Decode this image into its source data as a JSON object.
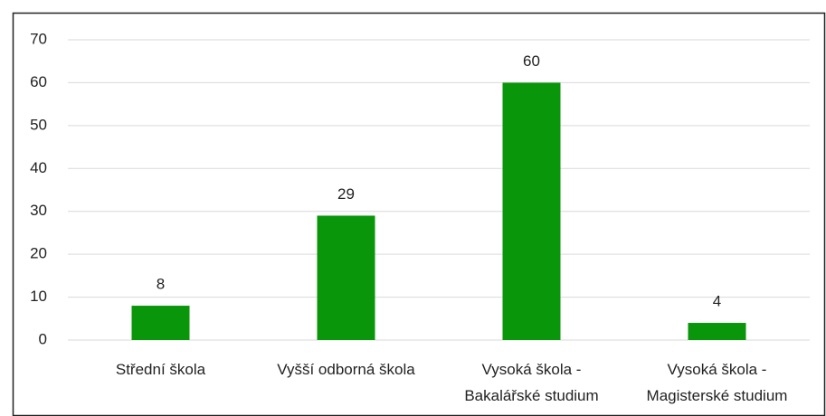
{
  "chart_data": {
    "type": "bar",
    "categories": [
      "Střední škola",
      "Vyšší odborná škola",
      "Vysoká škola -\nBakalářské studium",
      "Vysoká škola -\nMagisterské studium"
    ],
    "values": [
      8,
      29,
      60,
      4
    ],
    "color": "#0a960a",
    "ylim": [
      0,
      70
    ],
    "yticks": [
      0,
      10,
      20,
      30,
      40,
      50,
      60,
      70
    ],
    "grid": true,
    "data_labels": true
  }
}
